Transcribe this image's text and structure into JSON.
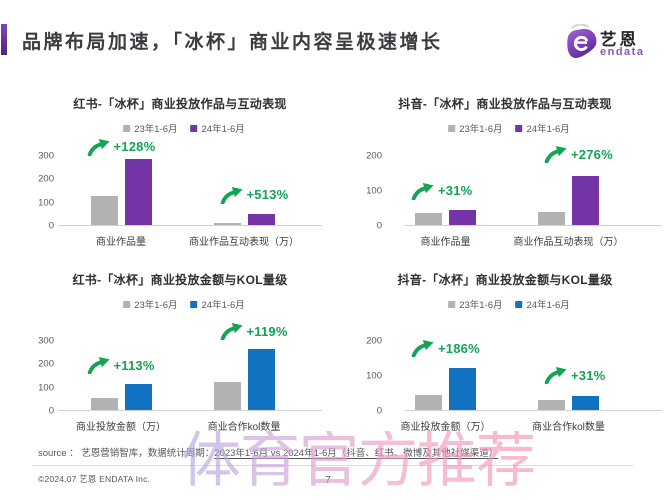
{
  "page": {
    "title": "品牌布局加速，「冰杯」商业内容呈极速增长",
    "page_number": "7"
  },
  "logo": {
    "name_cn": "艺恩",
    "name_en": "endata"
  },
  "colors": {
    "accent_purple": "#5e2e91",
    "bar_gray": "#b2b2b3",
    "bar_purple": "#7434a8",
    "bar_blue": "#1272c2",
    "growth_green": "#13a455"
  },
  "chart_data": [
    {
      "type": "bar",
      "title": "红书-「冰杯」商业投放作品与互动表现",
      "categories": [
        "商业作品量",
        "商业作品互动表现（万）"
      ],
      "series": [
        {
          "name": "23年1-6月",
          "color": "#b2b2b3",
          "values": [
            125,
            8
          ]
        },
        {
          "name": "24年1-6月",
          "color": "#7434a8",
          "values": [
            285,
            49
          ]
        }
      ],
      "growth_labels": [
        "+128%",
        "+513%"
      ],
      "ylim": [
        0,
        300
      ],
      "yticks": [
        0,
        100,
        200,
        300
      ],
      "legend_position": "top",
      "grid": false
    },
    {
      "type": "bar",
      "title": "抖音-「冰杯」商业投放作品与互动表现",
      "categories": [
        "商业作品量",
        "商业作品互动表现（万）"
      ],
      "series": [
        {
          "name": "23年1-6月",
          "color": "#b2b2b3",
          "values": [
            33,
            37
          ]
        },
        {
          "name": "24年1-6月",
          "color": "#7434a8",
          "values": [
            43,
            139
          ]
        }
      ],
      "growth_labels": [
        "+31%",
        "+276%"
      ],
      "ylim": [
        0,
        200
      ],
      "yticks": [
        0,
        100,
        200
      ],
      "legend_position": "top",
      "grid": false
    },
    {
      "type": "bar",
      "title": "红书-「冰杯」商业投放金额与KOL量级",
      "categories": [
        "商业投放金额（万）",
        "商业合作kol数量"
      ],
      "series": [
        {
          "name": "23年1-6月",
          "color": "#b2b2b3",
          "values": [
            52,
            119
          ]
        },
        {
          "name": "24年1-6月",
          "color": "#1272c2",
          "values": [
            111,
            261
          ]
        }
      ],
      "growth_labels": [
        "+113%",
        "+119%"
      ],
      "ylim": [
        0,
        300
      ],
      "yticks": [
        0,
        100,
        200,
        300
      ],
      "legend_position": "top",
      "grid": false
    },
    {
      "type": "bar",
      "title": "抖音-「冰杯」商业投放金额与KOL量级",
      "categories": [
        "商业投放金额（万）",
        "商业合作kol数量"
      ],
      "series": [
        {
          "name": "23年1-6月",
          "color": "#b2b2b3",
          "values": [
            42,
            30
          ]
        },
        {
          "name": "24年1-6月",
          "color": "#1272c2",
          "values": [
            120,
            39
          ]
        }
      ],
      "growth_labels": [
        "+186%",
        "+31%"
      ],
      "ylim": [
        0,
        200
      ],
      "yticks": [
        0,
        100,
        200
      ],
      "legend_position": "top",
      "grid": false
    }
  ],
  "source_note": {
    "prefix": "source ： 艺恩营销智库，数据统计周期：",
    "period": "2023年1-6月 vs 2024年1-6月（抖音、红书、微博及其他社媒渠道）"
  },
  "footer": {
    "copyright": "©2024.07  艺恩 ENDATA Inc."
  },
  "watermark": "体育官方推荐"
}
